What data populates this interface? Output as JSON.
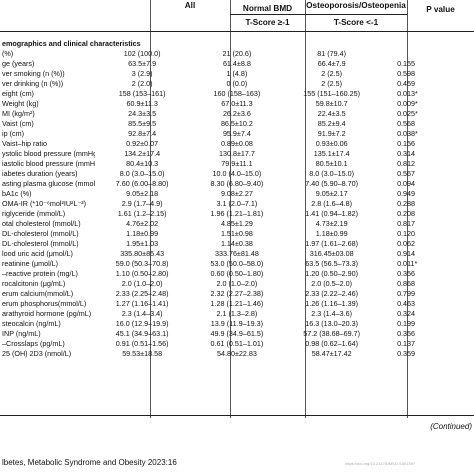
{
  "table": {
    "headers": {
      "all": "All",
      "normal": "Normal BMD",
      "osteo": "Osteoporosis/Osteopenia",
      "p": "P value",
      "normal_sub": "T-Score ≥-1",
      "osteo_sub": "T-Score <-1"
    },
    "section_title": "emographics and clinical characteristics",
    "rows": [
      {
        "label": "(%)",
        "all": "102 (100.0)",
        "normal": "21 (20.6)",
        "osteo": "81 (79.4)",
        "p": ""
      },
      {
        "label": "ge (years)",
        "all": "63.5±7.9",
        "normal": "61.4±8.8",
        "osteo": "66.4±7.9",
        "p": "0.155"
      },
      {
        "label": "ver smoking (n (%))",
        "all": "3 (2.9)",
        "normal": "1 (4.8)",
        "osteo": "2 (2.5)",
        "p": "0.598"
      },
      {
        "label": "ver drinking (n (%))",
        "all": "2 (2.0)",
        "normal": "0 (0.0)",
        "osteo": "2 (2.5)",
        "p": "0.459"
      },
      {
        "label": "eight (cm)",
        "all": "158 (153–161)",
        "normal": "160 (158–163)",
        "osteo": "155 (151–160.25)",
        "p": "0.013*"
      },
      {
        "label": "Weight (kg)",
        "all": "60.9±11.3",
        "normal": "67.0±11.3",
        "osteo": "59.8±10.7",
        "p": "0.009*"
      },
      {
        "label": "MI (kg/m²)",
        "all": "24.3±3.5",
        "normal": "26.2±3.6",
        "osteo": "22.4±3.5",
        "p": "0.025*"
      },
      {
        "label": "Vaist (cm)",
        "all": "85.5±9.5",
        "normal": "86.5±10.2",
        "osteo": "85.2±9.4",
        "p": "0.568"
      },
      {
        "label": "ip (cm)",
        "all": "92.8±7.4",
        "normal": "95.9±7.4",
        "osteo": "91.9±7.2",
        "p": "0.038*"
      },
      {
        "label": "Vaist–hip ratio",
        "all": "0.92±0.07",
        "normal": "0.89±0.08",
        "osteo": "0.93±0.06",
        "p": "0.156"
      },
      {
        "label": "ystolic blood pressure (mmHg)",
        "all": "134.2±17.4",
        "normal": "130.8±17.7",
        "osteo": "135.1±17.4",
        "p": "0.314"
      },
      {
        "label": "iastolic blood pressure (mmHg)",
        "all": "80.4±10.3",
        "normal": "79.9±11.1",
        "osteo": "80.5±10.1",
        "p": "0.812"
      },
      {
        "label": "iabetes duration (years)",
        "all": "8.0 (3.0–15.0)",
        "normal": "10.0 (4.0–15.0)",
        "osteo": "8.0 (3.0–15.0)",
        "p": "0.567"
      },
      {
        "label": "asting plasma glucose (mmol/L)",
        "all": "7.60 (6.00–8.80)",
        "normal": "8.30 (6.80–9.40)",
        "osteo": "7.40 (5.90–8.70)",
        "p": "0.094"
      },
      {
        "label": "bA1c (%)",
        "all": "9.05±2.18",
        "normal": "9.08±2.27",
        "osteo": "9.05±2.17",
        "p": "0.949"
      },
      {
        "label": "OMA-IR (*10⁻⁶mol²IU²L⁻²)",
        "all": "2.9 (1.7–4.9)",
        "normal": "3.1 (2.0–7.1)",
        "osteo": "2.8 (1.6–4.8)",
        "p": "0.288"
      },
      {
        "label": "riglyceride (mmol/L)",
        "all": "1.61 (1.2–2.15)",
        "normal": "1.96 (1.21–1.81)",
        "osteo": "1.41 (0.94–1.82)",
        "p": "0.208"
      },
      {
        "label": "otal cholesterol (mmol/L)",
        "all": "4.76±2.02",
        "normal": "4.85±1.29",
        "osteo": "4.73±2.19",
        "p": "0.817"
      },
      {
        "label": "DL-cholesterol (mmol/L)",
        "all": "1.18±0.99",
        "normal": "1.51±0.98",
        "osteo": "1.18±0.99",
        "p": "0.120"
      },
      {
        "label": "DL-cholesterol (mmol/L)",
        "all": "1.95±1.03",
        "normal": "1.14±0.38",
        "osteo": "1.97 (1.61–2.68)",
        "p": "0.062"
      },
      {
        "label": "lood uric acid (μmol/L)",
        "all": "335.80±85.43",
        "normal": "333.76±81.48",
        "osteo": "316.45±03.08",
        "p": "0.914"
      },
      {
        "label": "reatinine (μmol/L)",
        "all": "59.0 (50.3–70.8)",
        "normal": "53.0 (50.0–58.0)",
        "osteo": "63.5 (56.5–73.3)",
        "p": "0.011*"
      },
      {
        "label": "–reactive protein (mg/L)",
        "all": "1.10 (0.50–2.80)",
        "normal": "0.60 (0.50–1.80)",
        "osteo": "1.20 (0.50–2.90)",
        "p": "0.356"
      },
      {
        "label": "rocalcitonin (μg/mL)",
        "all": "2.0 (1.0–2.0)",
        "normal": "2.0 (1.0–2.0)",
        "osteo": "2.0 (0.5–2.0)",
        "p": "0.868"
      },
      {
        "label": "erum calcium(mmol/L)",
        "all": "2.33 (2.25–2.48)",
        "normal": "2.32 (2.27–2.38)",
        "osteo": "2.33 (2.22–2.46)",
        "p": "0.799"
      },
      {
        "label": "erum phosphorus(mmol/L)",
        "all": "1.27 (1.16–1.41)",
        "normal": "1.28 (1.21–1.46)",
        "osteo": "1.26 (1.16–1.39)",
        "p": "0.463"
      },
      {
        "label": "arathyroid hormone (pg/mL)",
        "all": "2.3 (1.4–3.4)",
        "normal": "2.1 (1.3–2.8)",
        "osteo": "2.3 (1.4–3.6)",
        "p": "0.324"
      },
      {
        "label": "steocalcin (ng/mL)",
        "all": "16.0 (12.9–19.9)",
        "normal": "13.9 (11.9–19.3)",
        "osteo": "16.3 (13.0–20.3)",
        "p": "0.199"
      },
      {
        "label": "INP (ng/mL)",
        "all": "45.1 (34.9–63.1)",
        "normal": "49.9 (34.9–61.5)",
        "osteo": "57.2 (38.68–69.7)",
        "p": "0.356"
      },
      {
        "label": "–Crosslaps (pg/mL)",
        "all": "0.91 (0.51–1.56)",
        "normal": "0.61 (0.51–1.01)",
        "osteo": "0.98 (0.62–1.64)",
        "p": "0.137"
      },
      {
        "label": "25 (OH) 2D3 (nmol/L)",
        "all": "59.53±18.58",
        "normal": "54.80±22.83",
        "osteo": "58.47±17.42",
        "p": "0.359"
      }
    ]
  },
  "continued_label": "(Continued)",
  "footer": "lbetes, Metabolic Syndrome and Obesity 2023:16",
  "doi": "https://doi.org/10.2147/DMSO.S401397"
}
